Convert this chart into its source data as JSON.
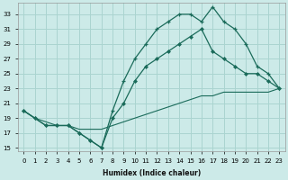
{
  "xlabel": "Humidex (Indice chaleur)",
  "bg_color": "#cceae8",
  "grid_color": "#aad4d0",
  "line_color": "#1a6b5a",
  "xlim": [
    -0.5,
    23.5
  ],
  "ylim": [
    14.5,
    34.5
  ],
  "xticks": [
    0,
    1,
    2,
    3,
    4,
    5,
    6,
    7,
    8,
    9,
    10,
    11,
    12,
    13,
    14,
    15,
    16,
    17,
    18,
    19,
    20,
    21,
    22,
    23
  ],
  "yticks": [
    15,
    17,
    19,
    21,
    23,
    25,
    27,
    29,
    31,
    33
  ],
  "line1_x": [
    0,
    1,
    2,
    3,
    4,
    5,
    6,
    7,
    8,
    9,
    10,
    11,
    12,
    13,
    14,
    15,
    16,
    17,
    18,
    19,
    20,
    21,
    22,
    23
  ],
  "line1_y": [
    20,
    19,
    18,
    18,
    18,
    17,
    16,
    15,
    20,
    24,
    27,
    29,
    31,
    32,
    33,
    33,
    32,
    34,
    32,
    31,
    29,
    26,
    25,
    23
  ],
  "line2_x": [
    0,
    1,
    2,
    3,
    4,
    5,
    6,
    7,
    8,
    9,
    10,
    11,
    12,
    13,
    14,
    15,
    16,
    17,
    18,
    19,
    20,
    21,
    22,
    23
  ],
  "line2_y": [
    20,
    19,
    18,
    18,
    18,
    17,
    16,
    15,
    19,
    21,
    24,
    26,
    27,
    28,
    29,
    30,
    31,
    28,
    27,
    26,
    25,
    25,
    24,
    23
  ],
  "line3_x": [
    0,
    1,
    2,
    3,
    4,
    5,
    6,
    7,
    8,
    9,
    10,
    11,
    12,
    13,
    14,
    15,
    16,
    17,
    18,
    19,
    20,
    21,
    22,
    23
  ],
  "line3_y": [
    20,
    19,
    18.5,
    18,
    18,
    17.5,
    17.5,
    17.5,
    18,
    18.5,
    19,
    19.5,
    20,
    20.5,
    21,
    21.5,
    22,
    22,
    22.5,
    22.5,
    22.5,
    22.5,
    22.5,
    23
  ]
}
